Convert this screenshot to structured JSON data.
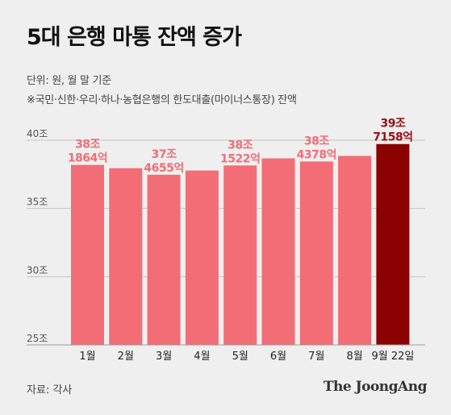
{
  "header": {
    "title": "5대 은행 마통 잔액 증가",
    "unit_note": "단위: 원, 월 말 기준",
    "scope_note": "※국민·신한·우리·하나·농협은행의 한도대출(마이너스통장) 잔액"
  },
  "footer": {
    "source": "자료: 각사",
    "publisher": "The JoongAng"
  },
  "colors": {
    "bar": "#f26d76",
    "highlight_bar": "#8b0000",
    "label": "#f26d76",
    "highlight_label": "#9b0d12"
  },
  "chart_data": {
    "type": "bar",
    "categories": [
      "1월",
      "2월",
      "3월",
      "4월",
      "5월",
      "6월",
      "7월",
      "8월",
      "9월 22일"
    ],
    "values": [
      38.19,
      37.95,
      37.47,
      37.78,
      38.15,
      38.67,
      38.44,
      38.85,
      39.72
    ],
    "ylim": [
      25,
      40
    ],
    "yticks": [
      25,
      30,
      35,
      40
    ],
    "ytick_labels": [
      "25조",
      "30조",
      "35조",
      "40조"
    ],
    "grid": true,
    "data_labels": [
      {
        "index": 0,
        "lines": [
          "38조",
          "1864억"
        ]
      },
      {
        "index": 2,
        "lines": [
          "37조",
          "4655억"
        ]
      },
      {
        "index": 4,
        "lines": [
          "38조",
          "1522억"
        ]
      },
      {
        "index": 6,
        "lines": [
          "38조",
          "4378억"
        ]
      },
      {
        "index": 8,
        "lines": [
          "39조",
          "7158억"
        ]
      }
    ],
    "highlight_index": 8
  }
}
